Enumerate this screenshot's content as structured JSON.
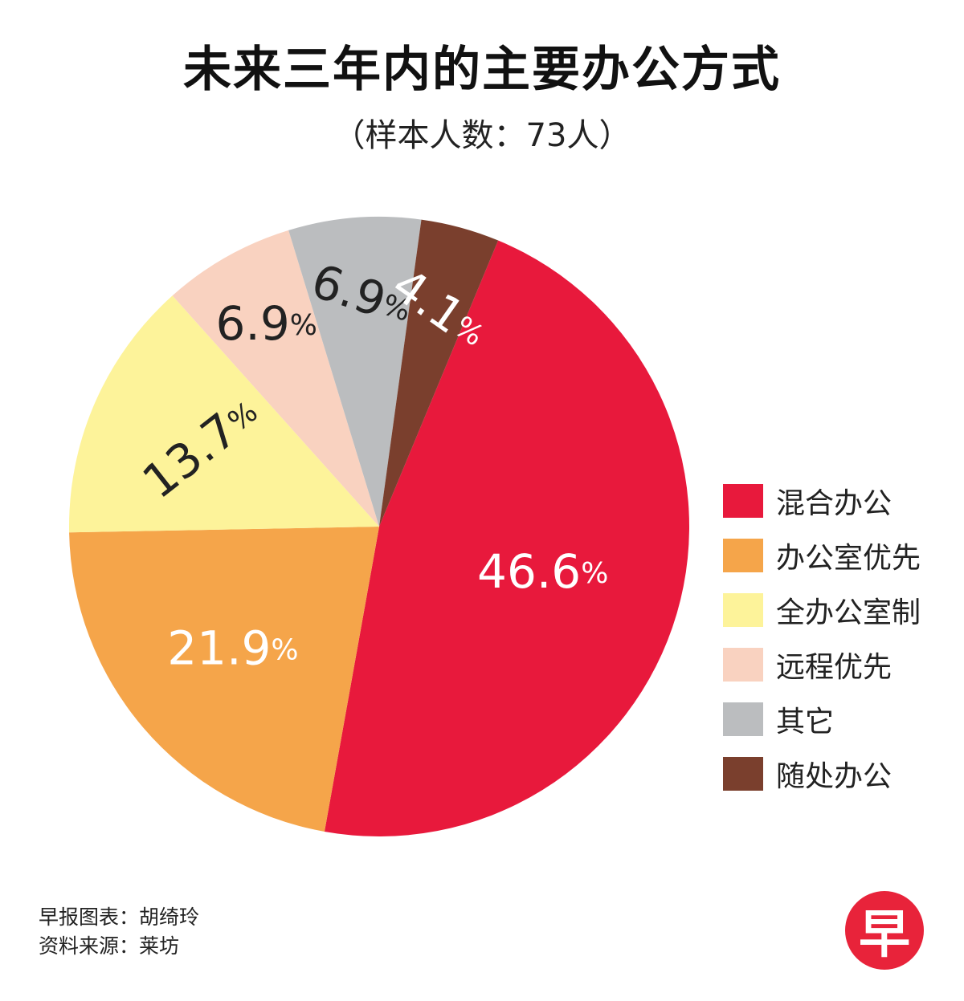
{
  "chart_data": {
    "type": "pie",
    "title": "未来三年内的主要办公方式",
    "subtitle": "（样本人数：73人）",
    "slices": [
      {
        "label": "混合办公",
        "value": 46.6,
        "value_text": "46.6",
        "color": "#e8193c",
        "text_color": "#ffffff"
      },
      {
        "label": "办公室优先",
        "value": 21.9,
        "value_text": "21.9",
        "color": "#f5a54a",
        "text_color": "#ffffff"
      },
      {
        "label": "全办公室制",
        "value": 13.7,
        "value_text": "13.7",
        "color": "#fdf39a",
        "text_color": "#222222"
      },
      {
        "label": "远程优先",
        "value": 6.9,
        "value_text": "6.9",
        "color": "#f9d2c0",
        "text_color": "#222222"
      },
      {
        "label": "其它",
        "value": 6.9,
        "value_text": "6.9",
        "color": "#bbbdbf",
        "text_color": "#222222"
      },
      {
        "label": "随处办公",
        "value": 4.1,
        "value_text": "4.1",
        "color": "#7a3f2d",
        "text_color": "#ffffff"
      }
    ],
    "unit": "%"
  },
  "credits": {
    "line1": "早报图表：胡绮玲",
    "line2": "资料来源：莱坊"
  },
  "logo": {
    "text": "早"
  }
}
